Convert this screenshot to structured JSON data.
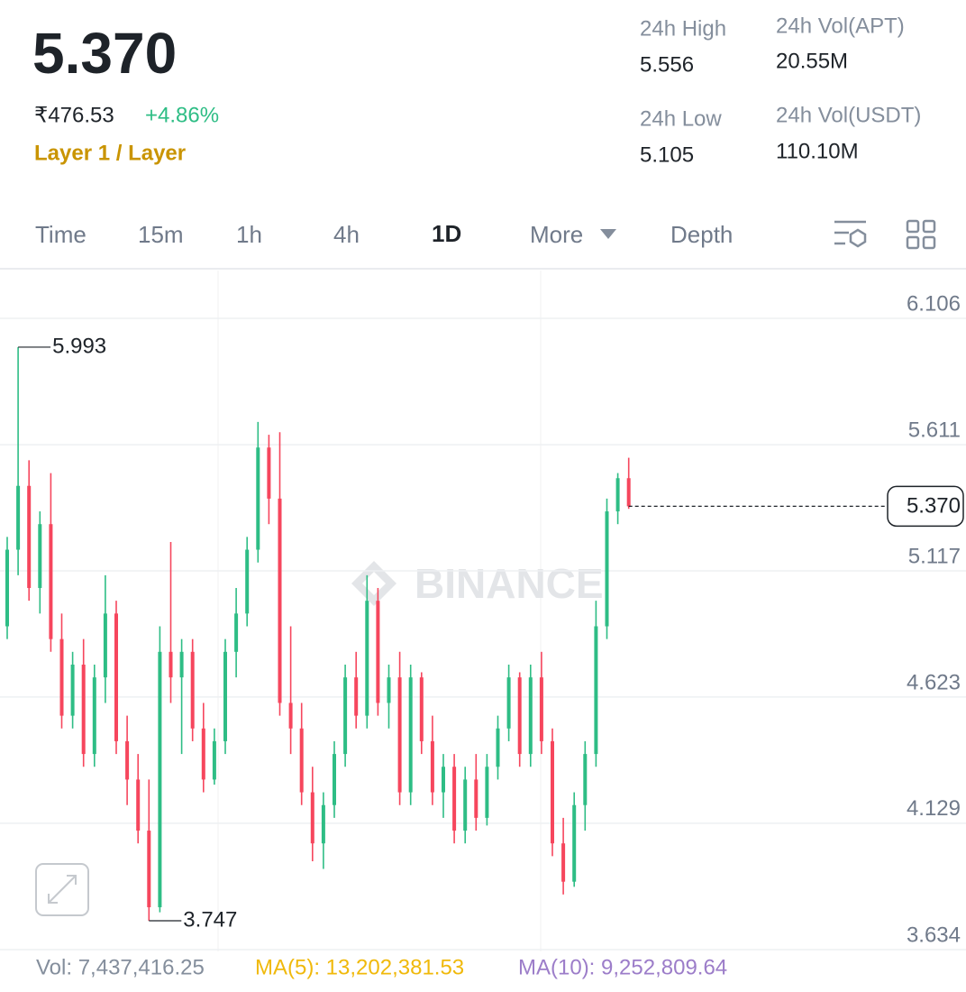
{
  "header": {
    "price": "5.370",
    "fiat_price": "₹476.53",
    "change": "+4.86%",
    "category": "Layer 1 / Layer",
    "stats": [
      {
        "label": "24h High",
        "value": "5.556"
      },
      {
        "label": "24h Vol(APT)",
        "value": "20.55M"
      },
      {
        "label": "24h Low",
        "value": "5.105"
      },
      {
        "label": "24h Vol(USDT)",
        "value": "110.10M"
      }
    ]
  },
  "tabs": [
    "Time",
    "15m",
    "1h",
    "4h",
    "1D",
    "More",
    "Depth"
  ],
  "watermark": "BINANCE",
  "indicators": {
    "vol": "Vol: 7,437,416.25",
    "ma5": "MA(5): 13,202,381.53",
    "ma10": "MA(10): 9,252,809.64"
  },
  "chart_data": {
    "type": "candlestick",
    "up_color": "#2ebd85",
    "down_color": "#f6465d",
    "open": [
      4.9,
      5.2,
      5.45,
      5.05,
      5.3,
      4.85,
      4.55,
      4.75,
      4.4,
      4.7,
      4.95,
      4.45,
      4.3,
      4.1,
      3.8,
      4.8,
      4.7,
      4.8,
      4.5,
      4.3,
      4.45,
      4.8,
      4.95,
      5.2,
      5.6,
      5.4,
      4.6,
      4.5,
      4.25,
      4.05,
      4.2,
      4.4,
      4.7,
      4.55,
      5.0,
      4.6,
      4.7,
      4.25,
      4.7,
      4.45,
      4.25,
      4.35,
      4.1,
      4.3,
      4.15,
      4.35,
      4.5,
      4.7,
      4.4,
      4.7,
      4.45,
      4.05,
      3.9,
      4.2,
      4.4,
      4.9,
      5.35,
      5.48
    ],
    "high": [
      5.25,
      5.993,
      5.55,
      5.35,
      5.5,
      4.95,
      4.8,
      4.85,
      4.75,
      5.1,
      5.0,
      4.55,
      4.4,
      4.3,
      4.9,
      5.23,
      4.85,
      4.85,
      4.6,
      4.5,
      4.85,
      5.05,
      5.25,
      5.7,
      5.65,
      5.66,
      4.9,
      4.6,
      4.35,
      4.25,
      4.45,
      4.75,
      4.8,
      5.1,
      5.05,
      4.75,
      4.8,
      4.75,
      4.72,
      4.55,
      4.4,
      4.4,
      4.35,
      4.4,
      4.4,
      4.55,
      4.75,
      4.72,
      4.75,
      4.8,
      4.5,
      4.15,
      4.25,
      4.45,
      5.0,
      5.4,
      5.5,
      5.56
    ],
    "low": [
      4.85,
      5.1,
      5.0,
      4.95,
      4.8,
      4.5,
      4.5,
      4.35,
      4.35,
      4.6,
      4.4,
      4.2,
      4.05,
      3.747,
      3.78,
      4.6,
      4.4,
      4.45,
      4.25,
      4.28,
      4.4,
      4.7,
      4.9,
      5.15,
      5.3,
      4.55,
      4.4,
      4.2,
      3.98,
      3.95,
      4.15,
      4.35,
      4.5,
      4.5,
      4.55,
      4.5,
      4.2,
      4.2,
      4.4,
      4.2,
      4.15,
      4.05,
      4.05,
      4.1,
      4.12,
      4.3,
      4.45,
      4.35,
      4.35,
      4.4,
      4.0,
      3.85,
      3.88,
      4.1,
      4.35,
      4.85,
      5.3,
      5.36
    ],
    "close": [
      5.2,
      5.45,
      5.05,
      5.3,
      4.85,
      4.55,
      4.75,
      4.4,
      4.7,
      4.95,
      4.45,
      4.3,
      4.1,
      3.8,
      4.8,
      4.7,
      4.8,
      4.5,
      4.3,
      4.45,
      4.8,
      4.95,
      5.2,
      5.6,
      5.4,
      4.6,
      4.5,
      4.25,
      4.05,
      4.2,
      4.4,
      4.7,
      4.55,
      5.0,
      4.6,
      4.7,
      4.25,
      4.7,
      4.45,
      4.25,
      4.35,
      4.1,
      4.3,
      4.15,
      4.35,
      4.5,
      4.7,
      4.4,
      4.7,
      4.45,
      4.05,
      3.9,
      4.2,
      4.4,
      4.9,
      5.35,
      5.48,
      5.37
    ],
    "ylim": [
      3.627,
      6.293
    ],
    "yticks": [
      6.106,
      5.611,
      5.117,
      4.623,
      4.129,
      3.634
    ],
    "grid": true,
    "last_price": {
      "value": 5.37,
      "label": "5.370"
    },
    "max_marker": 5.993,
    "min_marker": 3.747
  }
}
